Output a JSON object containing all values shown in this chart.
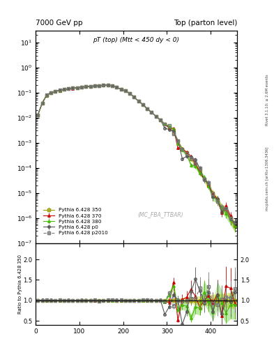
{
  "title_left": "7000 GeV pp",
  "title_right": "Top (parton level)",
  "plot_title": "pT (top) (Mtt < 450 dy < 0)",
  "watermark": "(MC_FBA_TTBAR)",
  "right_label_top": "Rivet 3.1.10; ≥ 2.6M events",
  "right_label_bot": "mcplots.cern.ch [arXiv:1306.3436]",
  "ylabel_ratio": "Ratio to Pythia 6.428 350",
  "xlim": [
    0,
    460
  ],
  "ylim_main": [
    1e-07,
    30
  ],
  "ylim_ratio": [
    0.4,
    2.4
  ],
  "ratio_yticks": [
    0.5,
    1.0,
    1.5,
    2.0
  ],
  "series": [
    {
      "label": "Pythia 6.428 350",
      "color": "#999900",
      "marker": "s",
      "linestyle": "-",
      "linewidth": 0.8,
      "markersize": 2.5,
      "band_color": "#cccc00",
      "band_alpha": 0.45
    },
    {
      "label": "Pythia 6.428 370",
      "color": "#cc0000",
      "marker": "^",
      "linestyle": "-",
      "linewidth": 0.8,
      "markersize": 2.5
    },
    {
      "label": "Pythia 6.428 380",
      "color": "#44bb00",
      "marker": "^",
      "linestyle": "-",
      "linewidth": 0.8,
      "markersize": 2.5,
      "band_color": "#44bb00",
      "band_alpha": 0.35
    },
    {
      "label": "Pythia 6.428 p0",
      "color": "#555555",
      "marker": "o",
      "linestyle": "-",
      "linewidth": 0.8,
      "markersize": 2.5
    },
    {
      "label": "Pythia 6.428 p2010",
      "color": "#777777",
      "marker": "s",
      "linestyle": "--",
      "linewidth": 0.8,
      "markersize": 2.5
    }
  ],
  "background_color": "#ffffff"
}
